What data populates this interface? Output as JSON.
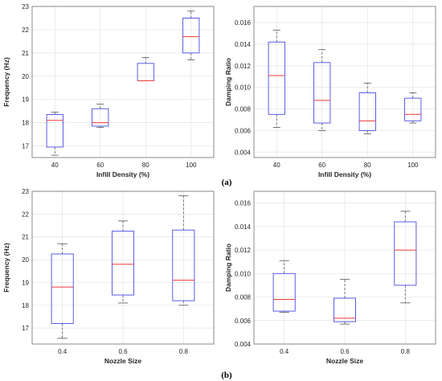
{
  "captions": {
    "a": "(a)",
    "b": "(b)"
  },
  "colors": {
    "box": "#4a4ae6",
    "median": "#ee3a3a",
    "whisker": "#555555",
    "grid": "#e3e3e3",
    "axis": "#6e6e6e"
  },
  "chart_data": [
    {
      "type": "box",
      "xlabel": "Infill Density (%)",
      "ylabel": "Frequency (Hz)",
      "categories": [
        "40",
        "60",
        "80",
        "100"
      ],
      "ylim": [
        16.5,
        23.0
      ],
      "yticks": [
        17,
        18,
        19,
        20,
        21,
        22,
        23
      ],
      "ytick_labels": [
        "17",
        "18",
        "19",
        "20",
        "21",
        "22",
        "23"
      ],
      "grid": true,
      "boxes": [
        {
          "whislo": 16.6,
          "q1": 16.95,
          "median": 18.1,
          "q3": 18.35,
          "whishi": 18.45
        },
        {
          "whislo": 17.8,
          "q1": 17.85,
          "median": 18.0,
          "q3": 18.6,
          "whishi": 18.8
        },
        {
          "whislo": 19.8,
          "q1": 19.8,
          "median": 19.8,
          "q3": 20.55,
          "whishi": 20.8
        },
        {
          "whislo": 20.7,
          "q1": 21.0,
          "median": 21.7,
          "q3": 22.5,
          "whishi": 22.8
        }
      ]
    },
    {
      "type": "box",
      "xlabel": "Infill Density (%)",
      "ylabel": "Damping Ratio",
      "categories": [
        "40",
        "60",
        "80",
        "100"
      ],
      "ylim": [
        0.0035,
        0.0175
      ],
      "yticks": [
        0.004,
        0.006,
        0.008,
        0.01,
        0.012,
        0.014,
        0.016
      ],
      "ytick_labels": [
        "0.004",
        "0.006",
        "0.008",
        "0.010",
        "0.012",
        "0.014",
        "0.016"
      ],
      "grid": true,
      "boxes": [
        {
          "whislo": 0.0063,
          "q1": 0.0075,
          "median": 0.0111,
          "q3": 0.0142,
          "whishi": 0.0153
        },
        {
          "whislo": 0.006,
          "q1": 0.0067,
          "median": 0.0088,
          "q3": 0.0123,
          "whishi": 0.0135
        },
        {
          "whislo": 0.0057,
          "q1": 0.006,
          "median": 0.0069,
          "q3": 0.0095,
          "whishi": 0.0104
        },
        {
          "whislo": 0.0067,
          "q1": 0.0069,
          "median": 0.0075,
          "q3": 0.009,
          "whishi": 0.0095
        }
      ]
    },
    {
      "type": "box",
      "xlabel": "Nozzle Size",
      "ylabel": "Frequency (Hz)",
      "categories": [
        "0.4",
        "0.6",
        "0.8"
      ],
      "ylim": [
        16.3,
        23.0
      ],
      "yticks": [
        17,
        18,
        19,
        20,
        21,
        22,
        23
      ],
      "ytick_labels": [
        "17",
        "18",
        "19",
        "20",
        "21",
        "22",
        "23"
      ],
      "grid": true,
      "boxes": [
        {
          "whislo": 16.55,
          "q1": 17.2,
          "median": 18.8,
          "q3": 20.25,
          "whishi": 20.7
        },
        {
          "whislo": 18.1,
          "q1": 18.45,
          "median": 19.8,
          "q3": 21.25,
          "whishi": 21.7
        },
        {
          "whislo": 18.0,
          "q1": 18.2,
          "median": 19.1,
          "q3": 21.3,
          "whishi": 22.8
        }
      ]
    },
    {
      "type": "box",
      "xlabel": "Nozzle Size",
      "ylabel": "Damping Ratio",
      "categories": [
        "0.4",
        "0.6",
        "0.8"
      ],
      "ylim": [
        0.004,
        0.017
      ],
      "yticks": [
        0.004,
        0.006,
        0.008,
        0.01,
        0.012,
        0.014,
        0.016
      ],
      "ytick_labels": [
        "0.004",
        "0.006",
        "0.008",
        "0.010",
        "0.012",
        "0.014",
        "0.016"
      ],
      "grid": true,
      "boxes": [
        {
          "whislo": 0.0067,
          "q1": 0.0068,
          "median": 0.0078,
          "q3": 0.01,
          "whishi": 0.0111
        },
        {
          "whislo": 0.0057,
          "q1": 0.0059,
          "median": 0.0062,
          "q3": 0.0079,
          "whishi": 0.0095
        },
        {
          "whislo": 0.0075,
          "q1": 0.009,
          "median": 0.012,
          "q3": 0.0144,
          "whishi": 0.0153
        }
      ]
    }
  ]
}
